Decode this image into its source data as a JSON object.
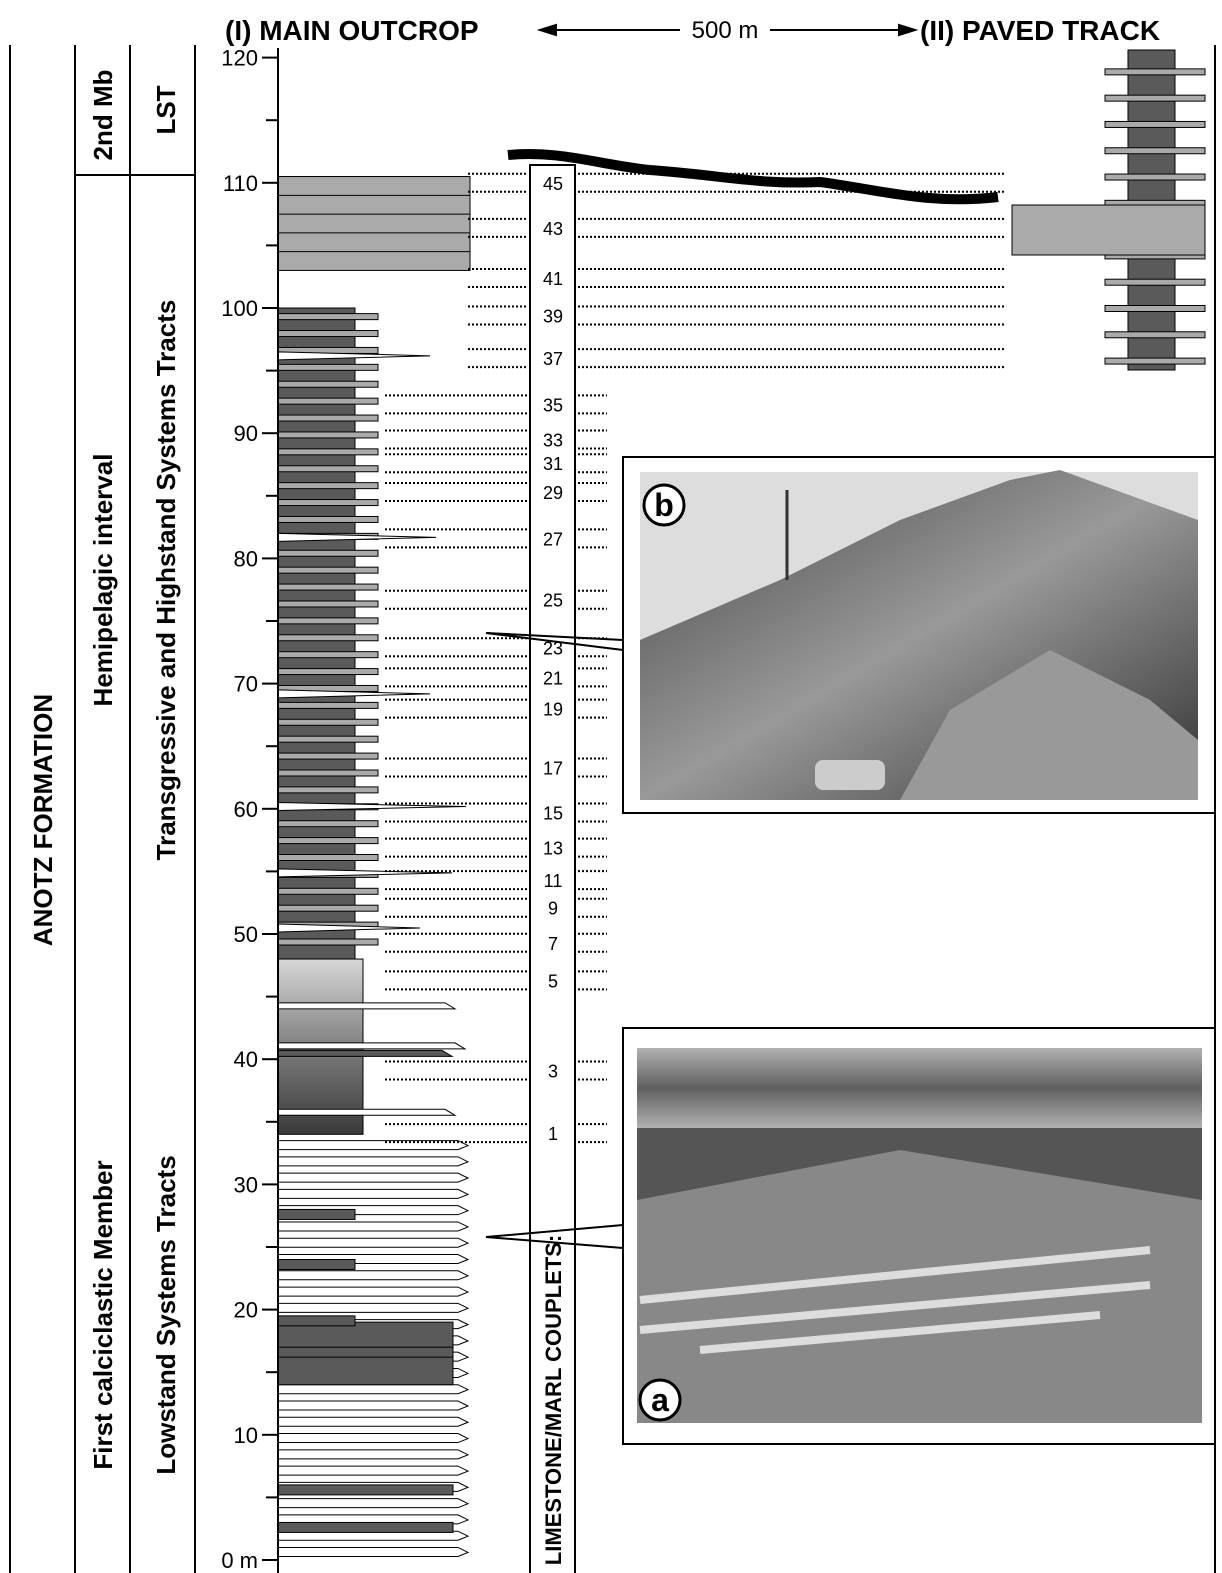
{
  "header": {
    "left": "(I) MAIN OUTCROP",
    "distance": "500 m",
    "right": "(II) PAVED TRACK"
  },
  "columns": {
    "formation": "ANOTZ FORMATION",
    "members": [
      "2nd Mb",
      "Hemipelagic interval",
      "First calciclastic Member"
    ],
    "systems_tracts": [
      "LST",
      "Transgressive and Highstand Systems Tracts",
      "Lowstand Systems Tracts"
    ]
  },
  "scale": {
    "ticks": [
      "0 m",
      "10",
      "20",
      "30",
      "40",
      "50",
      "60",
      "70",
      "80",
      "90",
      "100",
      "110",
      "120"
    ]
  },
  "couplets": {
    "title": "LIMESTONE/MARL COUPLETS:",
    "labels": [
      "1",
      "3",
      "5",
      "7",
      "9",
      "11",
      "13",
      "15",
      "17",
      "19",
      "21",
      "23",
      "25",
      "27",
      "29",
      "31",
      "33",
      "35",
      "37",
      "39",
      "41",
      "43",
      "45"
    ]
  },
  "photos": [
    {
      "label": "b"
    },
    {
      "label": "a"
    }
  ]
}
